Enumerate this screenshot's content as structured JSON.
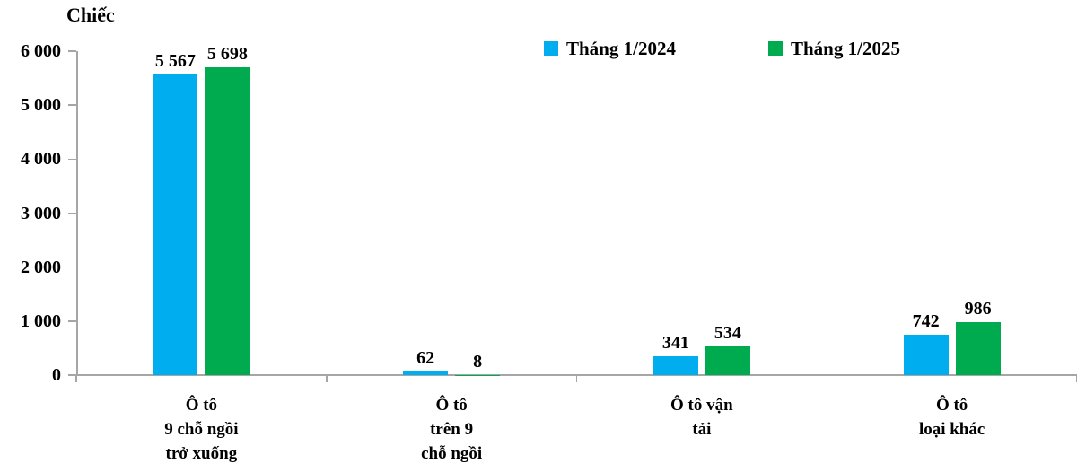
{
  "title": "Chiếc",
  "legend": [
    {
      "label": "Tháng 1/2024",
      "color": "#00AEEF"
    },
    {
      "label": "Tháng 1/2025",
      "color": "#00AB4F"
    }
  ],
  "chart_data": {
    "type": "bar",
    "title": "",
    "unit_label": "Chiếc",
    "xlabel": "",
    "ylabel": "Chiếc",
    "grid": false,
    "legend_position": "top",
    "categories": [
      {
        "label": "Ô tô 9 chỗ ngồi trở xuống",
        "lines": [
          "Ô tô",
          "9 chỗ ngồi",
          "trở xuống"
        ]
      },
      {
        "label": "Ô tô trên 9 chỗ ngồi",
        "lines": [
          "Ô tô",
          "trên 9",
          "chỗ ngồi"
        ]
      },
      {
        "label": "Ô tô vận tải",
        "lines": [
          "Ô tô vận",
          "tải"
        ]
      },
      {
        "label": "Ô tô loại khác",
        "lines": [
          "Ô tô",
          "loại khác"
        ]
      }
    ],
    "series": [
      {
        "name": "Tháng 1/2024",
        "color": "#00AEEF",
        "values": [
          5567,
          62,
          341,
          742
        ],
        "value_labels": [
          "5 567",
          "62",
          "341",
          "742"
        ]
      },
      {
        "name": "Tháng 1/2025",
        "color": "#00AB4F",
        "values": [
          5698,
          8,
          534,
          986
        ],
        "value_labels": [
          "5 698",
          "8",
          "534",
          "986"
        ]
      }
    ],
    "y_axis": {
      "min": 0,
      "max": 6000,
      "tick_step": 1000,
      "tick_labels": [
        "0",
        "1 000",
        "2 000",
        "3 000",
        "4 000",
        "5 000",
        "6 000"
      ]
    },
    "axis_color": "#a6a6a6"
  }
}
